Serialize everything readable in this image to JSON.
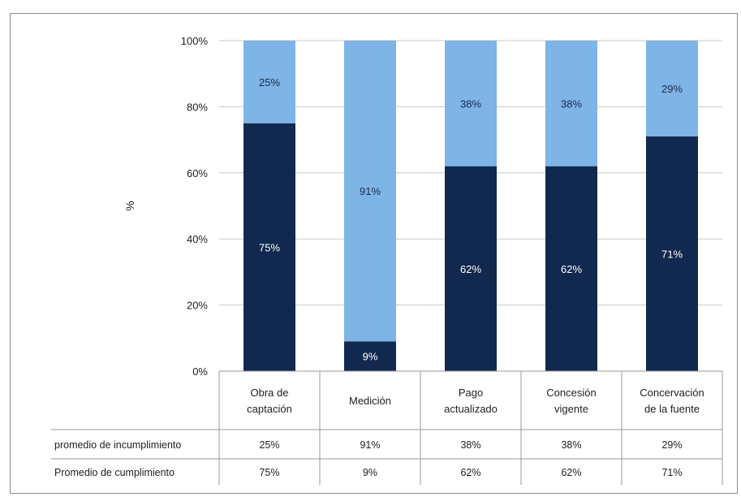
{
  "chart_data": {
    "type": "bar",
    "stacked": true,
    "percent_stacked": true,
    "ylabel": "%",
    "ylim": [
      0,
      100
    ],
    "yticks": [
      "0%",
      "20%",
      "40%",
      "60%",
      "80%",
      "100%"
    ],
    "grid": true,
    "categories": [
      [
        "Obra de",
        "captación"
      ],
      [
        "Medición"
      ],
      [
        "Pago",
        "actualizado"
      ],
      [
        "Concesión",
        "vigente"
      ],
      [
        "Concervación",
        "de la fuente"
      ]
    ],
    "series": [
      {
        "name": "Promedio de cumplimiento",
        "values": [
          75,
          9,
          62,
          62,
          71
        ],
        "labels": [
          "75%",
          "9%",
          "62%",
          "62%",
          "71%"
        ],
        "color": "#12294f"
      },
      {
        "name": "promedio de incumplimiento",
        "values": [
          25,
          91,
          38,
          38,
          29
        ],
        "labels": [
          "25%",
          "91%",
          "38%",
          "38%",
          "29%"
        ],
        "color": "#7eb4e6"
      }
    ],
    "table_rows": [
      {
        "label": "promedio de incumplimiento",
        "cells": [
          "25%",
          "91%",
          "38%",
          "38%",
          "29%"
        ]
      },
      {
        "label": "Promedio de cumplimiento",
        "cells": [
          "75%",
          "9%",
          "62%",
          "62%",
          "71%"
        ]
      }
    ],
    "colors": {
      "grid": "#c8c8c8",
      "table_border": "#9a9a9a"
    }
  }
}
